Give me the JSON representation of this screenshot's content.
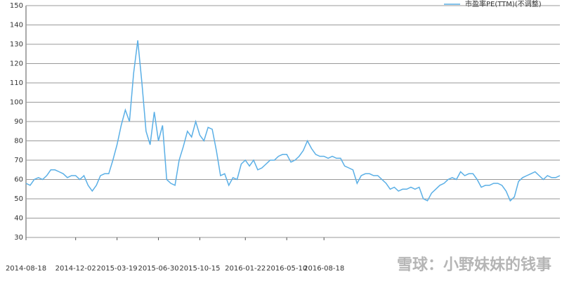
{
  "chart_data": {
    "type": "line",
    "categories": [
      "2014-08-18",
      null,
      null,
      null,
      null,
      null,
      null,
      null,
      null,
      null,
      null,
      null,
      "2014-12-02",
      null,
      null,
      null,
      null,
      null,
      null,
      null,
      null,
      null,
      "2015-03-19",
      null,
      null,
      null,
      null,
      null,
      null,
      null,
      null,
      null,
      "2015-06-30",
      null,
      null,
      null,
      null,
      null,
      null,
      null,
      null,
      null,
      "2015-10-15",
      null,
      null,
      null,
      null,
      null,
      null,
      null,
      null,
      null,
      null,
      "2016-01-22",
      null,
      null,
      null,
      null,
      null,
      null,
      null,
      null,
      null,
      "2016-05-10",
      null,
      null,
      null,
      null,
      null,
      null,
      null,
      null,
      "2016-08-18",
      null,
      null,
      null,
      null,
      null,
      null,
      null,
      null,
      null,
      null,
      null,
      null,
      null,
      null,
      null,
      null,
      null,
      null,
      null,
      null,
      null,
      null,
      null,
      null,
      null,
      null,
      null,
      null,
      null,
      null,
      null,
      null,
      null,
      null,
      null,
      null,
      null,
      null,
      null,
      null,
      null,
      null,
      null,
      null,
      null,
      null,
      null,
      null,
      null,
      null,
      null,
      null,
      null,
      null,
      null,
      null,
      null
    ],
    "series": [
      {
        "name": "市盈率PE(TTM)(不调整)",
        "color": "#5aafe6",
        "values": [
          58,
          57,
          60,
          61,
          60,
          62,
          65,
          65,
          64,
          63,
          61,
          62,
          62,
          60,
          62,
          57,
          54,
          57,
          62,
          63,
          63,
          70,
          78,
          88,
          96,
          90,
          115,
          132,
          110,
          85,
          78,
          95,
          80,
          88,
          60,
          58,
          57,
          70,
          77,
          85,
          82,
          90,
          83,
          80,
          87,
          86,
          75,
          62,
          63,
          57,
          61,
          60,
          68,
          70,
          67,
          70,
          65,
          66,
          68,
          70,
          70,
          72,
          73,
          73,
          69,
          70,
          72,
          75,
          80,
          76,
          73,
          72,
          72,
          71,
          72,
          71,
          71,
          67,
          66,
          65,
          58,
          62,
          63,
          63,
          62,
          62,
          60,
          58,
          55,
          56,
          54,
          55,
          55,
          56,
          55,
          56,
          50,
          49,
          53,
          55,
          57,
          58,
          60,
          61,
          60,
          64,
          62,
          63,
          63,
          60,
          56,
          57,
          57,
          58,
          58,
          57,
          54,
          49,
          51,
          59,
          61,
          62,
          63,
          64,
          62,
          60,
          62,
          61,
          61,
          62
        ]
      }
    ],
    "ylim": [
      30,
      150
    ],
    "yticks": [
      30,
      40,
      50,
      60,
      70,
      80,
      90,
      100,
      110,
      120,
      130,
      140,
      150
    ],
    "grid": true,
    "legend": "top-right",
    "watermark": "雪球：小野妹妹的钱事"
  }
}
